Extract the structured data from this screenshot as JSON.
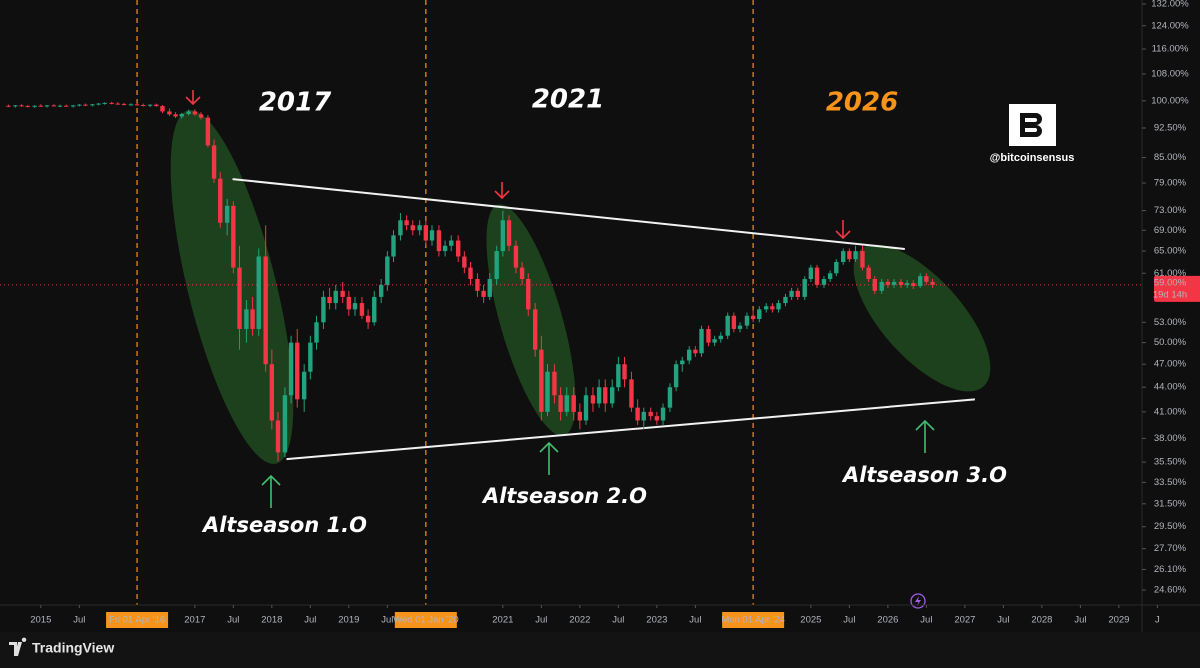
{
  "chart_data": {
    "type": "candlestick",
    "log_scale": true,
    "xlim": [
      2014.47,
      2029.3
    ],
    "ylim": [
      23.57,
      133.5
    ],
    "up_color": "#22a27e",
    "down_color": "#f23645",
    "xticks": [
      {
        "value": 2015,
        "label": "2015"
      },
      {
        "value": 2015.5,
        "label": "Jul"
      },
      {
        "value": 2016.25,
        "label": "Fri 01 Apr '16"
      },
      {
        "value": 2017,
        "label": "2017"
      },
      {
        "value": 2017.5,
        "label": "Jul"
      },
      {
        "value": 2018,
        "label": "2018"
      },
      {
        "value": 2018.5,
        "label": "Jul"
      },
      {
        "value": 2019,
        "label": "2019"
      },
      {
        "value": 2019.5,
        "label": "Jul"
      },
      {
        "value": 2020,
        "label": "Wed 01 Jan '20"
      },
      {
        "value": 2021,
        "label": "2021"
      },
      {
        "value": 2021.5,
        "label": "Jul"
      },
      {
        "value": 2022,
        "label": "2022"
      },
      {
        "value": 2022.5,
        "label": "Jul"
      },
      {
        "value": 2023,
        "label": "2023"
      },
      {
        "value": 2023.5,
        "label": "Jul"
      },
      {
        "value": 2024.25,
        "label": "Mon 01 Apr '24"
      },
      {
        "value": 2025,
        "label": "2025"
      },
      {
        "value": 2025.5,
        "label": "Jul"
      },
      {
        "value": 2026,
        "label": "2026"
      },
      {
        "value": 2026.5,
        "label": "Jul"
      },
      {
        "value": 2027,
        "label": "2027"
      },
      {
        "value": 2027.5,
        "label": "Jul"
      },
      {
        "value": 2028,
        "label": "2028"
      },
      {
        "value": 2028.5,
        "label": "Jul"
      },
      {
        "value": 2029,
        "label": "2029"
      },
      {
        "value": 2029.5,
        "label": "J"
      }
    ],
    "highlighted_xticks": [
      2,
      9,
      16
    ],
    "vlines": [
      2016.25,
      2020,
      2024.25
    ],
    "yticks": [
      {
        "value": 132,
        "label": "132.00%"
      },
      {
        "value": 124,
        "label": "124.00%"
      },
      {
        "value": 116,
        "label": "116.00%"
      },
      {
        "value": 108,
        "label": "108.00%"
      },
      {
        "value": 100,
        "label": "100.00%"
      },
      {
        "value": 92.5,
        "label": "92.50%"
      },
      {
        "value": 85,
        "label": "85.00%"
      },
      {
        "value": 79,
        "label": "79.00%"
      },
      {
        "value": 73,
        "label": "73.00%"
      },
      {
        "value": 69,
        "label": "69.00%"
      },
      {
        "value": 65,
        "label": "65.00%"
      },
      {
        "value": 61,
        "label": "61.00%"
      },
      {
        "value": 53,
        "label": "53.00%"
      },
      {
        "value": 50,
        "label": "50.00%"
      },
      {
        "value": 47,
        "label": "47.00%"
      },
      {
        "value": 44,
        "label": "44.00%"
      },
      {
        "value": 41,
        "label": "41.00%"
      },
      {
        "value": 38,
        "label": "38.00%"
      },
      {
        "value": 35.5,
        "label": "35.50%"
      },
      {
        "value": 33.5,
        "label": "33.50%"
      },
      {
        "value": 31.5,
        "label": "31.50%"
      },
      {
        "value": 29.5,
        "label": "29.50%"
      },
      {
        "value": 27.7,
        "label": "27.70%"
      },
      {
        "value": 26.1,
        "label": "26.10%"
      },
      {
        "value": 24.6,
        "label": "24.60%"
      }
    ],
    "last_price": 59,
    "last_price_label": "59.00%",
    "countdown": "19d 14h",
    "candles": [
      [
        2014.58,
        98.6,
        98.9,
        98.2,
        98.4
      ],
      [
        2014.67,
        98.4,
        98.8,
        98.1,
        98.7
      ],
      [
        2014.75,
        98.7,
        99.0,
        98.3,
        98.5
      ],
      [
        2014.83,
        98.5,
        98.8,
        98.2,
        98.3
      ],
      [
        2014.92,
        98.3,
        98.7,
        98.0,
        98.6
      ],
      [
        2015.0,
        98.6,
        99.0,
        98.3,
        98.4
      ],
      [
        2015.08,
        98.4,
        98.8,
        98.1,
        98.7
      ],
      [
        2015.17,
        98.7,
        99.0,
        98.4,
        98.5
      ],
      [
        2015.25,
        98.5,
        98.9,
        98.2,
        98.6
      ],
      [
        2015.33,
        98.6,
        98.9,
        98.3,
        98.4
      ],
      [
        2015.42,
        98.4,
        98.8,
        98.1,
        98.7
      ],
      [
        2015.5,
        98.7,
        99.1,
        98.4,
        98.9
      ],
      [
        2015.58,
        98.9,
        99.2,
        98.5,
        98.7
      ],
      [
        2015.67,
        98.7,
        99.1,
        98.4,
        99.0
      ],
      [
        2015.75,
        99.0,
        99.4,
        98.7,
        99.2
      ],
      [
        2015.83,
        99.2,
        99.6,
        98.9,
        99.4
      ],
      [
        2015.92,
        99.4,
        99.7,
        99.0,
        99.2
      ],
      [
        2016.0,
        99.2,
        99.6,
        98.9,
        99.1
      ],
      [
        2016.08,
        99.1,
        99.4,
        98.7,
        98.9
      ],
      [
        2016.17,
        98.9,
        99.3,
        98.6,
        99.0
      ],
      [
        2016.25,
        99.0,
        99.3,
        98.6,
        98.8
      ],
      [
        2016.33,
        98.8,
        99.2,
        98.4,
        98.6
      ],
      [
        2016.42,
        98.6,
        99.0,
        98.2,
        98.9
      ],
      [
        2016.5,
        98.9,
        99.2,
        98.3,
        98.5
      ],
      [
        2016.58,
        98.5,
        98.8,
        96.5,
        97.0
      ],
      [
        2016.67,
        97.0,
        97.8,
        95.8,
        96.2
      ],
      [
        2016.75,
        96.2,
        96.8,
        95.2,
        95.6
      ],
      [
        2016.83,
        95.6,
        96.6,
        95.0,
        96.3
      ],
      [
        2016.92,
        96.3,
        97.5,
        95.9,
        97.0
      ],
      [
        2017.0,
        97.0,
        97.6,
        95.8,
        96.2
      ],
      [
        2017.08,
        96.2,
        96.8,
        94.8,
        95.3
      ],
      [
        2017.17,
        95.3,
        96.0,
        87.5,
        88.0
      ],
      [
        2017.25,
        88.0,
        89.5,
        79.0,
        80.0
      ],
      [
        2017.33,
        80.0,
        81.5,
        69.5,
        70.5
      ],
      [
        2017.42,
        70.5,
        75.5,
        68.0,
        74.0
      ],
      [
        2017.5,
        74.0,
        75.0,
        61.0,
        62.0
      ],
      [
        2017.58,
        62.0,
        66.0,
        49.0,
        52.0
      ],
      [
        2017.67,
        52.0,
        56.5,
        50.0,
        55.0
      ],
      [
        2017.75,
        55.0,
        57.0,
        51.0,
        52.0
      ],
      [
        2017.83,
        52.0,
        65.5,
        51.0,
        64.0
      ],
      [
        2017.92,
        64.0,
        70.0,
        46.0,
        47.0
      ],
      [
        2018.0,
        47.0,
        49.0,
        39.0,
        40.0
      ],
      [
        2018.08,
        40.0,
        41.0,
        35.6,
        36.5
      ],
      [
        2018.17,
        36.5,
        44.0,
        36.0,
        43.0
      ],
      [
        2018.25,
        43.0,
        51.0,
        42.0,
        50.0
      ],
      [
        2018.33,
        50.0,
        52.0,
        41.5,
        42.5
      ],
      [
        2018.42,
        42.5,
        47.0,
        41.0,
        46.0
      ],
      [
        2018.5,
        46.0,
        51.0,
        45.0,
        50.0
      ],
      [
        2018.58,
        50.0,
        54.0,
        49.0,
        53.0
      ],
      [
        2018.67,
        53.0,
        58.0,
        52.0,
        57.0
      ],
      [
        2018.75,
        57.0,
        58.5,
        55.0,
        56.0
      ],
      [
        2018.83,
        56.0,
        59.0,
        55.0,
        58.0
      ],
      [
        2018.92,
        58.0,
        59.5,
        56.0,
        57.0
      ],
      [
        2019.0,
        57.0,
        58.0,
        54.0,
        55.0
      ],
      [
        2019.08,
        55.0,
        57.0,
        54.0,
        56.0
      ],
      [
        2019.17,
        56.0,
        57.0,
        53.5,
        54.0
      ],
      [
        2019.25,
        54.0,
        55.0,
        52.0,
        53.0
      ],
      [
        2019.33,
        53.0,
        58.0,
        52.5,
        57.0
      ],
      [
        2019.42,
        57.0,
        60.0,
        56.0,
        59.0
      ],
      [
        2019.5,
        59.0,
        65.0,
        58.0,
        64.0
      ],
      [
        2019.58,
        64.0,
        69.0,
        63.0,
        68.0
      ],
      [
        2019.67,
        68.0,
        72.5,
        67.0,
        71.0
      ],
      [
        2019.75,
        71.0,
        72.0,
        69.0,
        70.0
      ],
      [
        2019.83,
        70.0,
        71.0,
        68.0,
        69.0
      ],
      [
        2019.92,
        69.0,
        71.0,
        68.0,
        70.0
      ],
      [
        2020.0,
        70.0,
        71.0,
        66.0,
        67.0
      ],
      [
        2020.08,
        67.0,
        70.0,
        66.0,
        69.0
      ],
      [
        2020.17,
        69.0,
        70.0,
        64.0,
        65.0
      ],
      [
        2020.25,
        65.0,
        67.0,
        64.0,
        66.0
      ],
      [
        2020.33,
        66.0,
        68.0,
        65.0,
        67.0
      ],
      [
        2020.42,
        67.0,
        68.0,
        63.0,
        64.0
      ],
      [
        2020.5,
        64.0,
        65.0,
        61.0,
        62.0
      ],
      [
        2020.58,
        62.0,
        63.0,
        59.0,
        60.0
      ],
      [
        2020.67,
        60.0,
        61.0,
        57.0,
        58.0
      ],
      [
        2020.75,
        58.0,
        59.0,
        56.0,
        57.0
      ],
      [
        2020.83,
        57.0,
        61.0,
        56.5,
        60.0
      ],
      [
        2020.92,
        60.0,
        66.0,
        59.0,
        65.0
      ],
      [
        2021.0,
        65.0,
        73.0,
        64.0,
        71.0
      ],
      [
        2021.08,
        71.0,
        72.0,
        65.0,
        66.0
      ],
      [
        2021.17,
        66.0,
        67.0,
        61.0,
        62.0
      ],
      [
        2021.25,
        62.0,
        63.0,
        59.0,
        60.0
      ],
      [
        2021.33,
        60.0,
        61.0,
        54.0,
        55.0
      ],
      [
        2021.42,
        55.0,
        56.0,
        48.0,
        49.0
      ],
      [
        2021.5,
        49.0,
        51.0,
        40.0,
        41.0
      ],
      [
        2021.58,
        41.0,
        47.0,
        40.5,
        46.0
      ],
      [
        2021.67,
        46.0,
        47.0,
        42.0,
        43.0
      ],
      [
        2021.75,
        43.0,
        44.0,
        40.0,
        41.0
      ],
      [
        2021.83,
        41.0,
        44.0,
        40.5,
        43.0
      ],
      [
        2021.92,
        43.0,
        44.0,
        40.0,
        41.0
      ],
      [
        2022.0,
        41.0,
        42.0,
        39.0,
        40.0
      ],
      [
        2022.08,
        40.0,
        44.0,
        39.5,
        43.0
      ],
      [
        2022.17,
        43.0,
        44.0,
        41.0,
        42.0
      ],
      [
        2022.25,
        42.0,
        45.0,
        41.5,
        44.0
      ],
      [
        2022.33,
        44.0,
        45.0,
        41.0,
        42.0
      ],
      [
        2022.42,
        42.0,
        45.0,
        41.5,
        44.0
      ],
      [
        2022.5,
        44.0,
        48.0,
        43.5,
        47.0
      ],
      [
        2022.58,
        47.0,
        48.0,
        44.0,
        45.0
      ],
      [
        2022.67,
        45.0,
        46.0,
        41.0,
        41.5
      ],
      [
        2022.75,
        41.5,
        42.5,
        39.5,
        40.0
      ],
      [
        2022.83,
        40.0,
        41.5,
        39.0,
        41.0
      ],
      [
        2022.92,
        41.0,
        41.5,
        40.0,
        40.5
      ],
      [
        2023.0,
        40.5,
        41.0,
        39.5,
        40.0
      ],
      [
        2023.08,
        40.0,
        42.0,
        39.5,
        41.5
      ],
      [
        2023.17,
        41.5,
        44.5,
        41.0,
        44.0
      ],
      [
        2023.25,
        44.0,
        47.5,
        43.5,
        47.0
      ],
      [
        2023.33,
        47.0,
        48.0,
        46.0,
        47.5
      ],
      [
        2023.42,
        47.5,
        49.5,
        47.0,
        49.0
      ],
      [
        2023.5,
        49.0,
        49.5,
        48.0,
        48.5
      ],
      [
        2023.58,
        48.5,
        52.5,
        48.0,
        52.0
      ],
      [
        2023.67,
        52.0,
        52.5,
        49.5,
        50.0
      ],
      [
        2023.75,
        50.0,
        51.0,
        49.5,
        50.5
      ],
      [
        2023.83,
        50.5,
        51.5,
        50.0,
        51.0
      ],
      [
        2023.92,
        51.0,
        54.5,
        50.5,
        54.0
      ],
      [
        2024.0,
        54.0,
        54.5,
        51.5,
        52.0
      ],
      [
        2024.08,
        52.0,
        53.0,
        51.5,
        52.5
      ],
      [
        2024.17,
        52.5,
        54.5,
        52.0,
        54.0
      ],
      [
        2024.25,
        54.0,
        55.0,
        53.0,
        53.5
      ],
      [
        2024.33,
        53.5,
        55.5,
        53.0,
        55.0
      ],
      [
        2024.42,
        55.0,
        56.0,
        54.5,
        55.5
      ],
      [
        2024.5,
        55.5,
        56.0,
        54.5,
        55.0
      ],
      [
        2024.58,
        55.0,
        56.5,
        54.5,
        56.0
      ],
      [
        2024.67,
        56.0,
        57.5,
        55.5,
        57.0
      ],
      [
        2024.75,
        57.0,
        58.5,
        56.5,
        58.0
      ],
      [
        2024.83,
        58.0,
        58.5,
        56.5,
        57.0
      ],
      [
        2024.92,
        57.0,
        60.5,
        56.5,
        60.0
      ],
      [
        2025.0,
        60.0,
        62.5,
        59.5,
        62.0
      ],
      [
        2025.08,
        62.0,
        62.5,
        58.5,
        59.0
      ],
      [
        2025.17,
        59.0,
        60.5,
        58.5,
        60.0
      ],
      [
        2025.25,
        60.0,
        61.5,
        59.5,
        61.0
      ],
      [
        2025.33,
        61.0,
        63.5,
        60.5,
        63.0
      ],
      [
        2025.42,
        63.0,
        65.5,
        62.5,
        65.0
      ],
      [
        2025.5,
        65.0,
        65.5,
        63.0,
        63.5
      ],
      [
        2025.58,
        63.5,
        66.0,
        63.0,
        65.0
      ],
      [
        2025.67,
        65.0,
        66.0,
        61.5,
        62.0
      ],
      [
        2025.75,
        62.0,
        62.5,
        59.5,
        60.0
      ],
      [
        2025.83,
        60.0,
        60.5,
        57.5,
        58.0
      ],
      [
        2025.92,
        58.0,
        60.0,
        57.5,
        59.5
      ],
      [
        2026.0,
        59.5,
        60.0,
        58.5,
        59.0
      ],
      [
        2026.08,
        59.0,
        60.0,
        58.5,
        59.5
      ],
      [
        2026.17,
        59.5,
        60.0,
        58.5,
        59.0
      ],
      [
        2026.25,
        59.0,
        59.8,
        58.5,
        59.3
      ],
      [
        2026.33,
        59.3,
        59.8,
        58.3,
        58.8
      ],
      [
        2026.42,
        58.8,
        61.0,
        58.5,
        60.5
      ],
      [
        2026.5,
        60.5,
        61.0,
        59.0,
        59.5
      ],
      [
        2026.58,
        59.5,
        60.0,
        58.5,
        59.0
      ]
    ],
    "trendlines": [
      {
        "x": [
          2017.49,
          2026.22
        ],
        "y": [
          79.9,
          65.4
        ]
      },
      {
        "x": [
          2018.19,
          2027.13
        ],
        "y": [
          35.8,
          42.5
        ]
      }
    ],
    "annotations": [
      {
        "text": "2017",
        "color": "#ffffff"
      },
      {
        "text": "2021",
        "color": "#ffffff"
      },
      {
        "text": "2026",
        "color": "#f7931a"
      },
      {
        "text": "Altseason 1.O",
        "color": "#ffffff"
      },
      {
        "text": "Altseason 2.O",
        "color": "#ffffff"
      },
      {
        "text": "Altseason 3.O",
        "color": "#ffffff"
      }
    ],
    "watermark": "@bitcoinsensus"
  },
  "footer": {
    "brand": "TradingView"
  }
}
